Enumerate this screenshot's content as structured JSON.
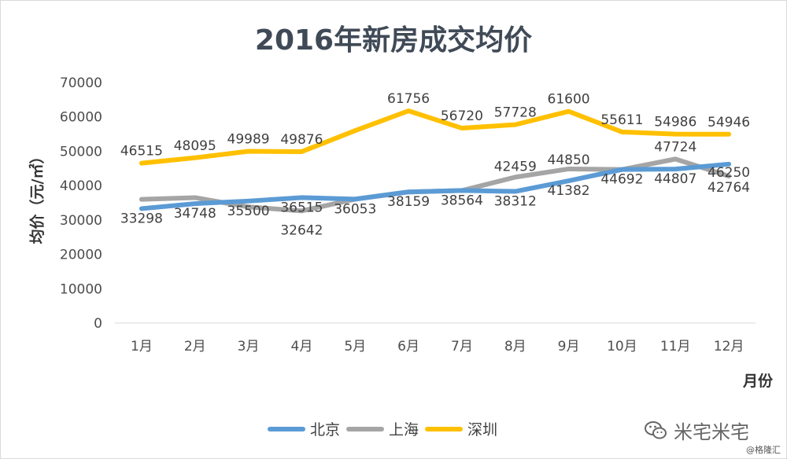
{
  "chart_data": {
    "type": "line",
    "title": "2016年新房成交均价",
    "ylabel": "均价（元/㎡）",
    "xlabel": "月份",
    "categories": [
      "1月",
      "2月",
      "3月",
      "4月",
      "5月",
      "6月",
      "7月",
      "8月",
      "9月",
      "10月",
      "11月",
      "12月"
    ],
    "ylim": [
      0,
      70000
    ],
    "yticks": [
      "70000",
      "60000",
      "50000",
      "40000",
      "30000",
      "20000",
      "10000",
      "0"
    ],
    "series": [
      {
        "name": "北京",
        "color": "#5b9bd5",
        "values": [
          33298,
          34748,
          35500,
          36515,
          36053,
          38159,
          38564,
          38312,
          41382,
          44692,
          44807,
          46250
        ]
      },
      {
        "name": "上海",
        "color": "#a5a5a5",
        "values": [
          36000,
          36500,
          33800,
          32642,
          36053,
          38159,
          38564,
          42459,
          44850,
          44692,
          47724,
          42764
        ]
      },
      {
        "name": "深圳",
        "color": "#ffc000",
        "values": [
          46515,
          48095,
          49989,
          49876,
          56000,
          61756,
          56720,
          57728,
          61600,
          55611,
          54986,
          54946
        ]
      }
    ],
    "data_labels": [
      [
        "46515",
        "48095",
        "49989",
        "49876",
        "",
        "61756",
        "56720",
        "57728",
        "61600",
        "55611",
        "54986",
        "54946"
      ],
      [
        "33298",
        "34748",
        "35500",
        "36515",
        "36053",
        "38159",
        "38564",
        "38312",
        "41382",
        "44692",
        "44807",
        "46250"
      ],
      [
        "",
        "",
        "",
        "32642",
        "",
        "",
        "",
        "42459",
        "44850",
        "",
        "47724",
        "42764"
      ]
    ],
    "legend_position": "bottom",
    "grid": false
  },
  "watermark": {
    "text": "米宅米宅",
    "icon": "wechat-icon"
  },
  "credit": "@格隆汇"
}
